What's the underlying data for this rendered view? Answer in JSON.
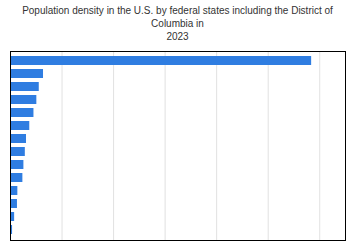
{
  "chart_data": {
    "type": "bar",
    "orientation": "horizontal",
    "title": "Population density in the U.S. by federal states including the District of Columbia in\n2023",
    "categories": [
      null,
      null,
      null,
      null,
      null,
      null,
      null,
      null,
      null,
      null,
      null,
      null,
      null,
      null
    ],
    "values": [
      11686,
      1281,
      1116,
      1022,
      910,
      748,
      621,
      575,
      520,
      480,
      285,
      270,
      160,
      80
    ],
    "color": "#2f7de1",
    "xlim": [
      0,
      13000
    ],
    "xticks": [
      0,
      2000,
      4000,
      6000,
      8000,
      10000,
      12000
    ],
    "grid": true,
    "tick_labels": false
  }
}
